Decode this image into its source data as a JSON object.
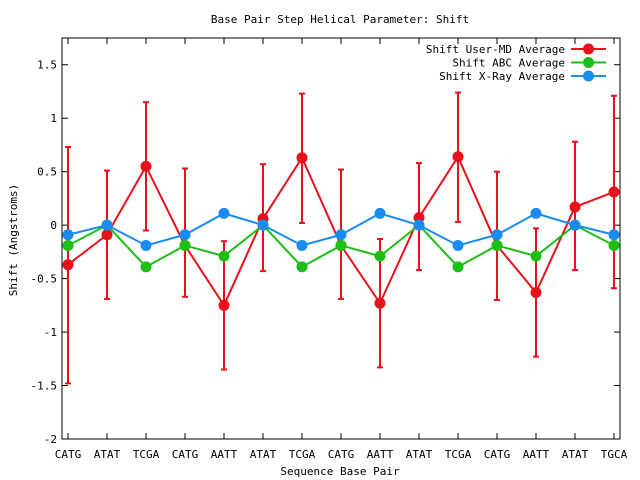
{
  "chart_data": {
    "type": "line",
    "title": "Base Pair Step Helical Parameter: Shift",
    "xlabel": "Sequence Base Pair",
    "ylabel": "Shift (Angstroms)",
    "categories": [
      "CATG",
      "ATAT",
      "TCGA",
      "CATG",
      "AATT",
      "ATAT",
      "TCGA",
      "CATG",
      "AATT",
      "ATAT",
      "TCGA",
      "CATG",
      "AATT",
      "ATAT",
      "TGCA"
    ],
    "ylim": [
      -2,
      1.75
    ],
    "yticks": [
      -2,
      -1.5,
      -1,
      -0.5,
      0,
      0.5,
      1,
      1.5
    ],
    "ytick_labels": [
      "-2",
      "-1.5",
      "-1",
      "-0.5",
      "0",
      "0.5",
      "1",
      "1.5"
    ],
    "legend_position": "top-right",
    "grid": false,
    "series": [
      {
        "name": "Shift User-MD Average",
        "color": "#e8101a",
        "values": [
          -0.37,
          -0.09,
          0.55,
          -0.19,
          -0.75,
          0.06,
          0.63,
          -0.19,
          -0.73,
          0.07,
          0.64,
          -0.19,
          -0.63,
          0.17,
          0.31
        ],
        "err_low": [
          -1.48,
          -0.69,
          -0.05,
          -0.67,
          -1.35,
          -0.43,
          0.02,
          -0.69,
          -1.33,
          -0.42,
          0.03,
          -0.7,
          -1.23,
          -0.42,
          -0.59
        ],
        "err_high": [
          0.73,
          0.51,
          1.15,
          0.53,
          -0.15,
          0.57,
          1.23,
          0.52,
          -0.13,
          0.58,
          1.24,
          0.5,
          -0.03,
          0.78,
          1.21
        ]
      },
      {
        "name": "Shift ABC Average",
        "color": "#1cbf14",
        "values": [
          -0.19,
          0.0,
          -0.39,
          -0.19,
          -0.29,
          0.0,
          -0.39,
          -0.19,
          -0.29,
          0.0,
          -0.39,
          -0.19,
          -0.29,
          0.0,
          -0.19
        ]
      },
      {
        "name": "Shift X-Ray Average",
        "color": "#1a8cf0",
        "values": [
          -0.09,
          0.0,
          -0.19,
          -0.09,
          0.11,
          0.0,
          -0.19,
          -0.09,
          0.11,
          0.0,
          -0.19,
          -0.09,
          0.11,
          0.0,
          -0.09
        ]
      }
    ]
  }
}
